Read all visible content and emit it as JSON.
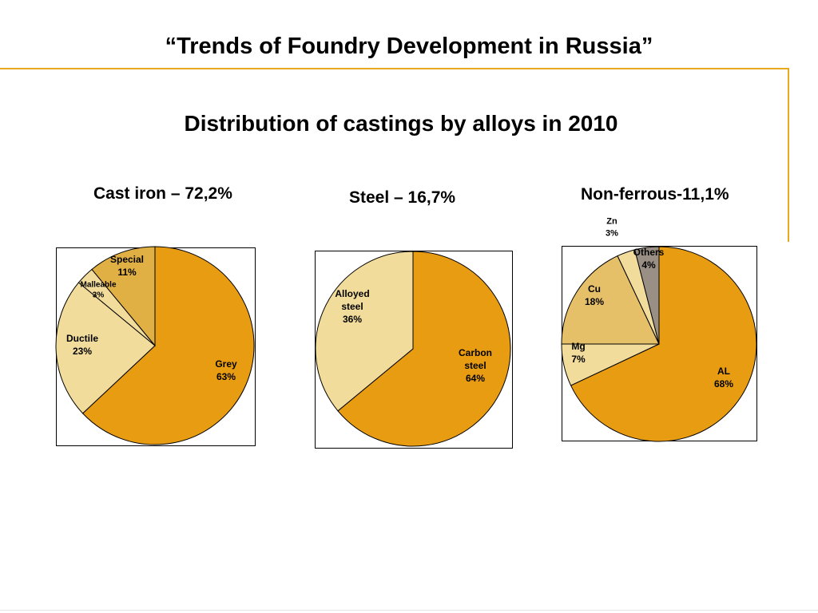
{
  "slide": {
    "title": "“Trends of Foundry Development in Russia”",
    "subtitle": "Distribution of castings by alloys in 2010"
  },
  "colors": {
    "accent": "#e8a91f",
    "dark_orange": "#e89c12",
    "light_tan": "#f2dc9c",
    "mid_tan": "#e6c069",
    "gold": "#e1b044",
    "grey": "#9a8f85"
  },
  "chart_data": [
    {
      "type": "pie",
      "title": "Cast iron – 72,2%",
      "slices": [
        {
          "label": "Grey",
          "value": 63,
          "text": "63%",
          "color": "#e89c12"
        },
        {
          "label": "Ductile",
          "value": 23,
          "text": "23%",
          "color": "#f2dc9c"
        },
        {
          "label": "Malleable",
          "value": 3,
          "text": "3%",
          "color": "#f2dc9c"
        },
        {
          "label": "Special",
          "value": 11,
          "text": "11%",
          "color": "#e1b044"
        }
      ]
    },
    {
      "type": "pie",
      "title": "Steel – 16,7%",
      "slices": [
        {
          "label": "Carbon steel",
          "value": 64,
          "text": "64%",
          "color": "#e89c12"
        },
        {
          "label": "Alloyed steel",
          "value": 36,
          "text": "36%",
          "color": "#f2dc9c"
        }
      ]
    },
    {
      "type": "pie",
      "title": "Non-ferrous-11,1%",
      "slices": [
        {
          "label": "AL",
          "value": 68,
          "text": "68%",
          "color": "#e89c12"
        },
        {
          "label": "Mg",
          "value": 7,
          "text": "7%",
          "color": "#f2dc9c"
        },
        {
          "label": "Cu",
          "value": 18,
          "text": "18%",
          "color": "#e6c069"
        },
        {
          "label": "Zn",
          "value": 3,
          "text": "3%",
          "color": "#f2dc9c"
        },
        {
          "label": "Others",
          "value": 4,
          "text": "4%",
          "color": "#9a8f85"
        }
      ]
    }
  ]
}
